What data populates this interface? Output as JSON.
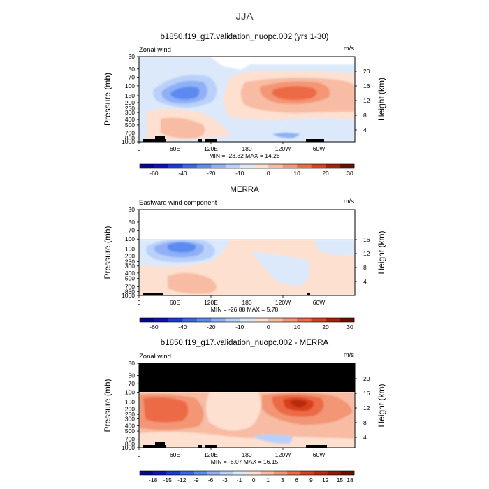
{
  "figure": {
    "title": "JJA"
  },
  "chart_data": [
    {
      "type": "heatmap",
      "title": "b1850.f19_g17.validation_nuopc.002 (yrs 1-30)",
      "left_label": "Zonal wind",
      "units_label": "m/s",
      "ylabel": "Pressure (mb)",
      "ylabel_right": "Height (km)",
      "y_ticks": [
        "30",
        "50",
        "70",
        "100",
        "150",
        "200",
        "250",
        "300",
        "400",
        "500",
        "700",
        "850",
        "1000"
      ],
      "y_ticks_right": [
        "20",
        "16",
        "12",
        "8",
        "4"
      ],
      "x_ticks": [
        "0",
        "60E",
        "120E",
        "180",
        "120W",
        "60W"
      ],
      "min_max_label": "MIN = -23.32   MAX = 14.26",
      "min": -23.32,
      "max": 14.26,
      "colorbar": {
        "labels": [
          "-60",
          "-40",
          "-20",
          "-10",
          "0",
          "10",
          "20",
          "30"
        ],
        "colors": [
          "#08088a",
          "#1010b8",
          "#1a3ad6",
          "#3a66e6",
          "#5b8af0",
          "#8fb0f6",
          "#b9d0fa",
          "#dce9fb",
          "#fde0d0",
          "#f7bca3",
          "#f29675",
          "#ec6a45",
          "#d8401e",
          "#a52409",
          "#6e0e02"
        ]
      },
      "grid": false
    },
    {
      "type": "heatmap",
      "title": "MERRA",
      "left_label": "Eastward wind component",
      "units_label": "m/s",
      "ylabel": "Pressure (mb)",
      "ylabel_right": "Height (km)",
      "y_ticks": [
        "30",
        "50",
        "70",
        "100",
        "150",
        "200",
        "250",
        "300",
        "400",
        "500",
        "700",
        "850",
        "1000"
      ],
      "y_ticks_right": [
        "16",
        "12",
        "8",
        "4"
      ],
      "x_ticks": [
        "0",
        "60E",
        "120E",
        "180",
        "120W",
        "60W"
      ],
      "min_max_label": "MIN = -26.88   MAX =   5.78",
      "min": -26.88,
      "max": 5.78,
      "colorbar": {
        "labels": [
          "-60",
          "-40",
          "-20",
          "-10",
          "0",
          "10",
          "20",
          "30"
        ],
        "colors": [
          "#08088a",
          "#1010b8",
          "#1a3ad6",
          "#3a66e6",
          "#5b8af0",
          "#8fb0f6",
          "#b9d0fa",
          "#dce9fb",
          "#fde0d0",
          "#f7bca3",
          "#f29675",
          "#ec6a45",
          "#d8401e",
          "#a52409",
          "#6e0e02"
        ]
      },
      "grid": false
    },
    {
      "type": "heatmap",
      "title": "b1850.f19_g17.validation_nuopc.002 - MERRA",
      "left_label": "Zonal wind",
      "units_label": "m/s",
      "ylabel": "Pressure (mb)",
      "ylabel_right": "Height (km)",
      "y_ticks": [
        "30",
        "50",
        "70",
        "100",
        "150",
        "200",
        "250",
        "300",
        "400",
        "500",
        "700",
        "850",
        "1000"
      ],
      "y_ticks_right": [
        "20",
        "16",
        "12",
        "8",
        "4"
      ],
      "x_ticks": [
        "0",
        "60E",
        "120E",
        "180",
        "120W",
        "60W"
      ],
      "min_max_label": "MIN =  -6.07   MAX =  16.15",
      "min": -6.07,
      "max": 16.15,
      "colorbar": {
        "labels": [
          "-18",
          "-15",
          "-12",
          "-9",
          "-6",
          "-3",
          "-1",
          "0",
          "1",
          "3",
          "6",
          "9",
          "12",
          "15",
          "18"
        ],
        "colors": [
          "#08088a",
          "#1010b8",
          "#1a3ad6",
          "#3a66e6",
          "#5b8af0",
          "#8fb0f6",
          "#b9d0fa",
          "#dce9fb",
          "#fde0d0",
          "#f7bca3",
          "#f29675",
          "#ec6a45",
          "#d8401e",
          "#b62c10",
          "#8f1a05",
          "#6e0e02"
        ]
      },
      "grid": false
    }
  ]
}
